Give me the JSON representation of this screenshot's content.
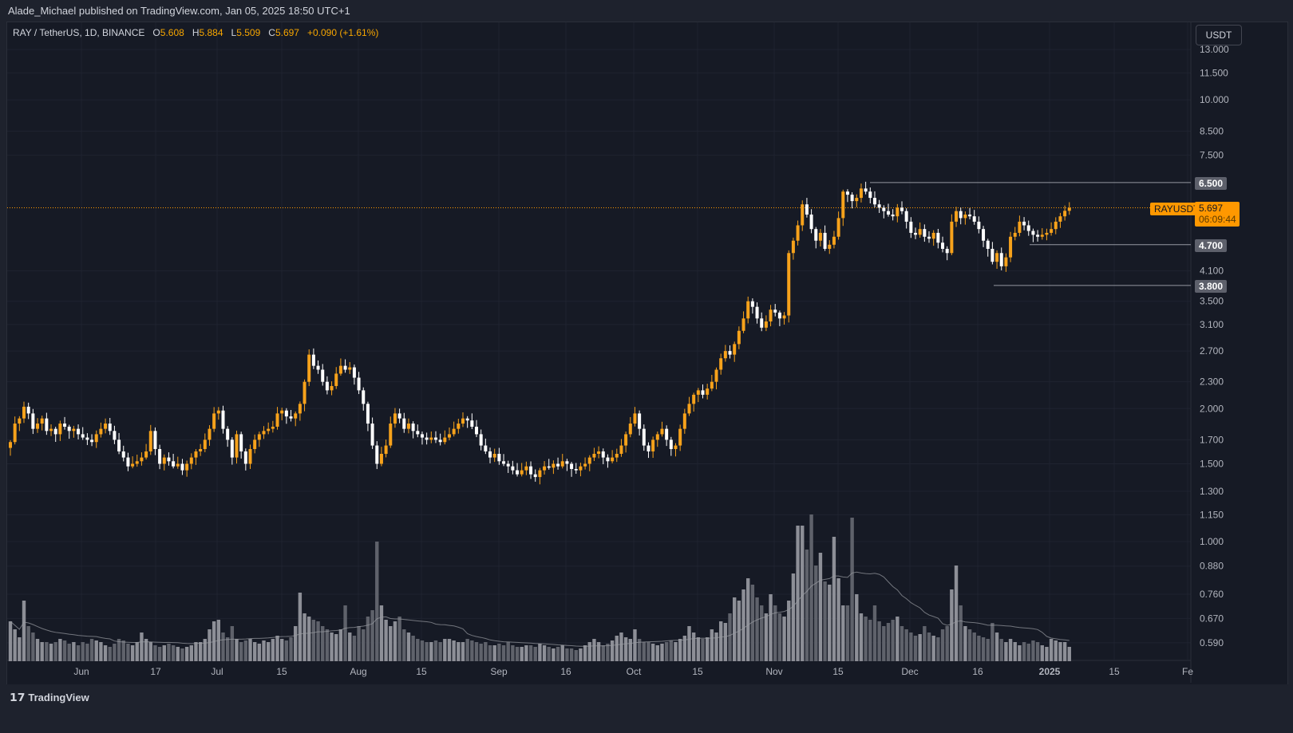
{
  "header": {
    "published": "Alade_Michael published on TradingView.com, Jan 05, 2025 18:50 UTC+1"
  },
  "legend": {
    "symbol": "RAY / TetherUS, 1D, BINANCE",
    "o_label": "O",
    "o": "5.608",
    "h_label": "H",
    "h": "5.884",
    "l_label": "L",
    "l": "5.509",
    "c_label": "C",
    "c": "5.697",
    "change": "+0.090 (+1.61%)"
  },
  "currency_button": "USDT",
  "footer": {
    "logo": "TradingView"
  },
  "price_labels": {
    "ticker": "RAYUSDT",
    "last": "5.697",
    "countdown": "06:09:44",
    "levels": [
      "6.500",
      "4.700",
      "3.800"
    ]
  },
  "colors": {
    "up": "#f7a21b",
    "down": "#ffffff",
    "background": "#161a25",
    "last_price": "#ff9800",
    "volume": "#787b86"
  },
  "chart_data": {
    "type": "candlestick",
    "scale": "log",
    "start_date": "2024-05-16",
    "end_date": "2025-01-05",
    "ylim": [
      0.55,
      14
    ],
    "grid": true,
    "y_ticks": [
      "13.000",
      "11.500",
      "10.000",
      "8.500",
      "7.500",
      "6.500",
      "5.697",
      "4.700",
      "4.100",
      "3.800",
      "3.500",
      "3.100",
      "2.700",
      "2.300",
      "2.000",
      "1.700",
      "1.500",
      "1.300",
      "1.150",
      "1.000",
      "0.880",
      "0.760",
      "0.670",
      "0.590"
    ],
    "x_ticks": [
      "Jun",
      "17",
      "Jul",
      "15",
      "Aug",
      "15",
      "Sep",
      "16",
      "Oct",
      "15",
      "Nov",
      "15",
      "Dec",
      "16",
      "2025",
      "15",
      "Fe"
    ],
    "horizontal_levels": [
      6.5,
      4.7,
      3.8
    ],
    "last_price": 5.697,
    "close": [
      1.68,
      1.85,
      1.9,
      2.02,
      1.95,
      1.8,
      1.85,
      1.9,
      1.78,
      1.8,
      1.75,
      1.85,
      1.82,
      1.78,
      1.8,
      1.75,
      1.72,
      1.7,
      1.68,
      1.75,
      1.8,
      1.85,
      1.78,
      1.7,
      1.6,
      1.55,
      1.48,
      1.5,
      1.52,
      1.55,
      1.6,
      1.78,
      1.62,
      1.5,
      1.55,
      1.52,
      1.48,
      1.5,
      1.45,
      1.5,
      1.55,
      1.6,
      1.62,
      1.7,
      1.8,
      1.95,
      1.98,
      1.8,
      1.7,
      1.55,
      1.75,
      1.6,
      1.5,
      1.62,
      1.7,
      1.75,
      1.78,
      1.8,
      1.82,
      1.95,
      1.98,
      1.92,
      1.9,
      1.95,
      2.05,
      2.3,
      2.65,
      2.5,
      2.45,
      2.3,
      2.2,
      2.25,
      2.4,
      2.5,
      2.45,
      2.48,
      2.35,
      2.2,
      2.05,
      1.85,
      1.65,
      1.5,
      1.58,
      1.65,
      1.85,
      1.95,
      1.9,
      1.8,
      1.85,
      1.78,
      1.75,
      1.72,
      1.7,
      1.72,
      1.7,
      1.68,
      1.72,
      1.75,
      1.8,
      1.85,
      1.9,
      1.88,
      1.82,
      1.75,
      1.65,
      1.6,
      1.55,
      1.58,
      1.52,
      1.5,
      1.48,
      1.45,
      1.42,
      1.45,
      1.48,
      1.42,
      1.4,
      1.45,
      1.48,
      1.47,
      1.5,
      1.48,
      1.52,
      1.5,
      1.46,
      1.45,
      1.48,
      1.5,
      1.55,
      1.58,
      1.6,
      1.55,
      1.52,
      1.55,
      1.58,
      1.65,
      1.75,
      1.85,
      1.95,
      1.8,
      1.65,
      1.6,
      1.7,
      1.75,
      1.8,
      1.7,
      1.62,
      1.65,
      1.8,
      1.95,
      2.05,
      2.15,
      2.2,
      2.15,
      2.22,
      2.3,
      2.45,
      2.6,
      2.7,
      2.65,
      2.8,
      3.0,
      3.2,
      3.5,
      3.4,
      3.2,
      3.05,
      3.15,
      3.35,
      3.3,
      3.2,
      3.25,
      4.5,
      4.8,
      5.2,
      5.8,
      5.5,
      5.1,
      4.8,
      5.0,
      4.6,
      4.7,
      4.9,
      5.4,
      6.2,
      6.1,
      5.9,
      6.0,
      6.3,
      6.2,
      6.0,
      5.8,
      5.7,
      5.6,
      5.5,
      5.45,
      5.7,
      5.6,
      5.3,
      5.0,
      4.95,
      5.1,
      4.9,
      4.85,
      5.0,
      4.75,
      4.6,
      4.5,
      5.3,
      5.6,
      5.4,
      5.5,
      5.45,
      5.3,
      5.1,
      4.8,
      4.6,
      4.3,
      4.5,
      4.2,
      4.4,
      4.9,
      5.0,
      5.3,
      5.2,
      5.05,
      4.95,
      4.9,
      4.95,
      5.0,
      5.1,
      5.3,
      5.45,
      5.608,
      5.697
    ],
    "volume_relative": [
      25,
      20,
      15,
      38,
      22,
      18,
      14,
      12,
      12,
      11,
      12,
      14,
      13,
      11,
      12,
      10,
      12,
      11,
      14,
      13,
      12,
      10,
      9,
      11,
      14,
      13,
      11,
      10,
      12,
      18,
      14,
      12,
      10,
      9,
      10,
      11,
      10,
      9,
      8,
      9,
      10,
      12,
      12,
      14,
      20,
      25,
      26,
      18,
      15,
      22,
      14,
      12,
      13,
      14,
      12,
      11,
      13,
      12,
      14,
      16,
      14,
      13,
      15,
      22,
      43,
      30,
      28,
      26,
      25,
      22,
      20,
      18,
      17,
      20,
      35,
      18,
      16,
      22,
      20,
      28,
      32,
      75,
      35,
      26,
      22,
      25,
      28,
      20,
      18,
      16,
      14,
      13,
      12,
      12,
      13,
      12,
      14,
      14,
      13,
      12,
      12,
      14,
      13,
      12,
      11,
      12,
      10,
      10,
      11,
      10,
      12,
      10,
      9,
      9,
      10,
      10,
      9,
      11,
      10,
      9,
      8,
      9,
      10,
      8,
      8,
      7,
      8,
      10,
      12,
      14,
      12,
      10,
      11,
      13,
      16,
      18,
      15,
      14,
      20,
      14,
      12,
      12,
      11,
      10,
      11,
      12,
      13,
      12,
      14,
      16,
      22,
      18,
      15,
      14,
      15,
      20,
      18,
      25,
      24,
      30,
      40,
      38,
      45,
      52,
      48,
      40,
      35,
      30,
      42,
      35,
      30,
      28,
      38,
      55,
      85,
      85,
      70,
      92,
      60,
      68,
      50,
      48,
      78,
      52,
      35,
      35,
      90,
      42,
      30,
      28,
      26,
      35,
      25,
      22,
      24,
      26,
      28,
      22,
      20,
      18,
      16,
      17,
      22,
      18,
      16,
      15,
      20,
      22,
      45,
      60,
      35,
      22,
      20,
      18,
      16,
      15,
      14,
      24,
      18,
      14,
      12,
      14,
      12,
      10,
      12,
      11,
      13,
      12,
      10,
      9,
      14,
      13,
      12,
      12,
      9
    ]
  }
}
